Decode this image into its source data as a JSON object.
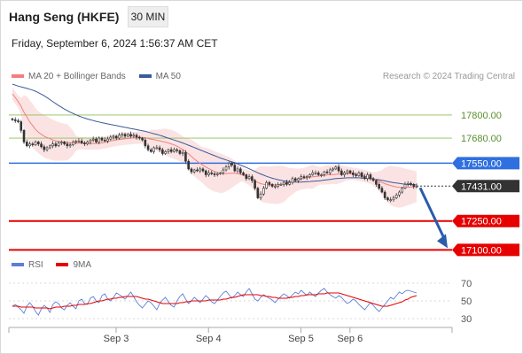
{
  "header": {
    "title": "Hang Seng (HKFE)",
    "interval": "30 MIN",
    "timestamp": "Friday, September 6, 2024 1:56:37 AM CET"
  },
  "legend_main": [
    {
      "label": "MA 20 + Bollinger Bands",
      "color": "#f08080"
    },
    {
      "label": "MA 50",
      "color": "#3a5a99"
    }
  ],
  "credit": "Research © 2024 Trading Central",
  "legend_rsi": [
    {
      "label": "RSI",
      "color": "#5b7fd6"
    },
    {
      "label": "9MA",
      "color": "#e60000"
    }
  ],
  "colors": {
    "resistance": "#8fbf5a",
    "pivot": "#2f6fdf",
    "support": "#e60000",
    "current": "#333333",
    "bollinger": "#fbe3e3",
    "ma20": "#f08080",
    "ma50": "#3a5a99",
    "arrow": "#2a5caa"
  },
  "chart_data": [
    {
      "type": "candlestick",
      "title": "Hang Seng (HKFE)",
      "x_ticks": [
        "Sep 3",
        "Sep 4",
        "Sep 5",
        "Sep 6"
      ],
      "ylim": [
        17065,
        17965
      ],
      "levels": [
        {
          "value": 17800.0,
          "label": "17800.00",
          "kind": "resistance"
        },
        {
          "value": 17680.0,
          "label": "17680.00",
          "kind": "resistance"
        },
        {
          "value": 17550.0,
          "label": "17550.00",
          "kind": "pivot"
        },
        {
          "value": 17431.0,
          "label": "17431.00",
          "kind": "current"
        },
        {
          "value": 17250.0,
          "label": "17250.00",
          "kind": "support"
        },
        {
          "value": 17100.0,
          "label": "17100.00",
          "kind": "support"
        }
      ],
      "close": [
        17775,
        17770,
        17765,
        17720,
        17660,
        17640,
        17650,
        17645,
        17660,
        17650,
        17635,
        17620,
        17630,
        17640,
        17650,
        17640,
        17655,
        17660,
        17650,
        17640,
        17645,
        17660,
        17665,
        17665,
        17655,
        17650,
        17660,
        17670,
        17675,
        17660,
        17680,
        17670,
        17665,
        17675,
        17685,
        17690,
        17680,
        17695,
        17700,
        17690,
        17700,
        17690,
        17695,
        17685,
        17680,
        17670,
        17640,
        17620,
        17610,
        17630,
        17630,
        17620,
        17600,
        17610,
        17620,
        17610,
        17620,
        17615,
        17600,
        17605,
        17560,
        17520,
        17505,
        17515,
        17510,
        17520,
        17510,
        17490,
        17500,
        17495,
        17490,
        17495,
        17500,
        17515,
        17530,
        17550,
        17540,
        17510,
        17520,
        17500,
        17490,
        17470,
        17480,
        17460,
        17420,
        17370,
        17390,
        17420,
        17450,
        17440,
        17430,
        17430,
        17440,
        17440,
        17450,
        17440,
        17450,
        17470,
        17460,
        17470,
        17480,
        17475,
        17480,
        17490,
        17500,
        17500,
        17490,
        17490,
        17505,
        17500,
        17515,
        17520,
        17530,
        17510,
        17490,
        17500,
        17510,
        17500,
        17490,
        17485,
        17500,
        17480,
        17470,
        17490,
        17470,
        17460,
        17440,
        17420,
        17400,
        17370,
        17360,
        17360,
        17370,
        17385,
        17400,
        17420,
        17440,
        17445,
        17440,
        17430,
        17431
      ],
      "ma20": [
        17910,
        17890,
        17870,
        17845,
        17815,
        17790,
        17765,
        17745,
        17725,
        17710,
        17700,
        17690,
        17683,
        17677,
        17670,
        17666,
        17663,
        17661,
        17659,
        17658,
        17656,
        17655,
        17654,
        17654,
        17653,
        17653,
        17652,
        17652,
        17652,
        17652,
        17653,
        17655,
        17658,
        17661,
        17665,
        17668,
        17671,
        17673,
        17675,
        17677,
        17678,
        17680,
        17681,
        17682,
        17683,
        17683,
        17681,
        17678,
        17675,
        17672,
        17669,
        17666,
        17662,
        17659,
        17655,
        17650,
        17645,
        17638,
        17630,
        17621,
        17610,
        17598,
        17585,
        17572,
        17560,
        17549,
        17539,
        17530,
        17522,
        17514,
        17507,
        17502,
        17498,
        17496,
        17496,
        17497,
        17498,
        17498,
        17496,
        17492,
        17487,
        17481,
        17474,
        17466,
        17458,
        17450,
        17444,
        17440,
        17438,
        17437,
        17437,
        17437,
        17438,
        17440,
        17442,
        17446,
        17451,
        17456,
        17461,
        17465,
        17468,
        17471,
        17474,
        17477,
        17479,
        17481,
        17483,
        17485,
        17487,
        17489,
        17490,
        17491,
        17492,
        17493,
        17494,
        17495,
        17496,
        17496,
        17495,
        17493,
        17490,
        17487,
        17483,
        17479,
        17474,
        17469,
        17463,
        17457,
        17450,
        17444,
        17439,
        17434,
        17430,
        17427,
        17425,
        17424,
        17424,
        17425,
        17426,
        17427,
        17428
      ],
      "ma50": [
        17960,
        17955,
        17950,
        17946,
        17942,
        17938,
        17934,
        17929,
        17923,
        17916,
        17908,
        17900,
        17890,
        17880,
        17869,
        17859,
        17849,
        17840,
        17831,
        17823,
        17815,
        17808,
        17801,
        17795,
        17789,
        17784,
        17779,
        17775,
        17771,
        17767,
        17764,
        17760,
        17757,
        17754,
        17751,
        17748,
        17745,
        17742,
        17739,
        17736,
        17733,
        17730,
        17727,
        17724,
        17721,
        17718,
        17715,
        17711,
        17707,
        17703,
        17699,
        17695,
        17690,
        17685,
        17680,
        17675,
        17670,
        17665,
        17660,
        17655,
        17649,
        17643,
        17637,
        17631,
        17625,
        17619,
        17613,
        17607,
        17601,
        17595,
        17589,
        17583,
        17577,
        17572,
        17567,
        17562,
        17557,
        17552,
        17546,
        17540,
        17534,
        17528,
        17521,
        17514,
        17507,
        17500,
        17494,
        17488,
        17482,
        17477,
        17472,
        17468,
        17464,
        17461,
        17458,
        17456,
        17454,
        17453,
        17452,
        17452,
        17452,
        17453,
        17454,
        17455,
        17456,
        17457,
        17458,
        17460,
        17462,
        17464,
        17466,
        17468,
        17470,
        17471,
        17472,
        17473,
        17474,
        17474,
        17474,
        17474,
        17474,
        17473,
        17472,
        17471,
        17470,
        17468,
        17466,
        17464,
        17461,
        17458,
        17455,
        17452,
        17449,
        17447,
        17445,
        17443,
        17441,
        17440,
        17439,
        17438,
        17437
      ]
    },
    {
      "type": "line",
      "title": "RSI",
      "yticks": [
        70,
        50,
        30
      ],
      "ylim": [
        15,
        85
      ],
      "rsi": [
        44,
        46,
        43,
        40,
        36,
        44,
        48,
        44,
        38,
        34,
        41,
        45,
        42,
        37,
        46,
        49,
        47,
        42,
        40,
        45,
        48,
        44,
        41,
        50,
        52,
        47,
        46,
        53,
        55,
        50,
        48,
        56,
        58,
        52,
        50,
        54,
        59,
        57,
        55,
        52,
        56,
        60,
        55,
        49,
        45,
        42,
        46,
        50,
        48,
        44,
        40,
        47,
        51,
        54,
        49,
        45,
        43,
        50,
        55,
        58,
        52,
        47,
        50,
        54,
        51,
        48,
        52,
        56,
        53,
        49,
        47,
        51,
        55,
        59,
        61,
        57,
        53,
        56,
        60,
        57,
        55,
        60,
        64,
        58,
        52,
        50,
        54,
        57,
        55,
        53,
        51,
        48,
        52,
        55,
        58,
        56,
        53,
        57,
        60,
        58,
        62,
        59,
        56,
        60,
        57,
        55,
        59,
        62,
        64,
        60,
        57,
        55,
        53,
        56,
        54,
        50,
        47,
        49,
        52,
        50,
        46,
        43,
        40,
        44,
        48,
        45,
        41,
        38,
        42,
        46,
        50,
        54,
        52,
        56,
        60,
        58,
        61,
        62,
        61,
        60,
        59
      ],
      "ma9": [
        44,
        44,
        44,
        43,
        43,
        43,
        43,
        43,
        42,
        42,
        42,
        42,
        42,
        41,
        42,
        43,
        43,
        43,
        44,
        44,
        44,
        45,
        45,
        46,
        46,
        46,
        47,
        47,
        48,
        49,
        50,
        50,
        51,
        52,
        52,
        53,
        53,
        54,
        54,
        55,
        55,
        55,
        55,
        55,
        54,
        53,
        52,
        52,
        51,
        50,
        49,
        48,
        47,
        47,
        47,
        47,
        47,
        47,
        48,
        48,
        49,
        49,
        50,
        50,
        50,
        50,
        50,
        50,
        51,
        51,
        51,
        51,
        51,
        52,
        52,
        53,
        54,
        54,
        55,
        56,
        57,
        57,
        57,
        57,
        57,
        57,
        56,
        56,
        55,
        55,
        54,
        54,
        53,
        53,
        53,
        53,
        54,
        54,
        55,
        55,
        56,
        56,
        57,
        57,
        57,
        57,
        58,
        58,
        58,
        59,
        59,
        59,
        59,
        59,
        58,
        57,
        56,
        55,
        54,
        53,
        52,
        51,
        50,
        49,
        48,
        47,
        46,
        45,
        44,
        44,
        44,
        45,
        46,
        47,
        48,
        49,
        51,
        52,
        54,
        55,
        56
      ]
    }
  ]
}
